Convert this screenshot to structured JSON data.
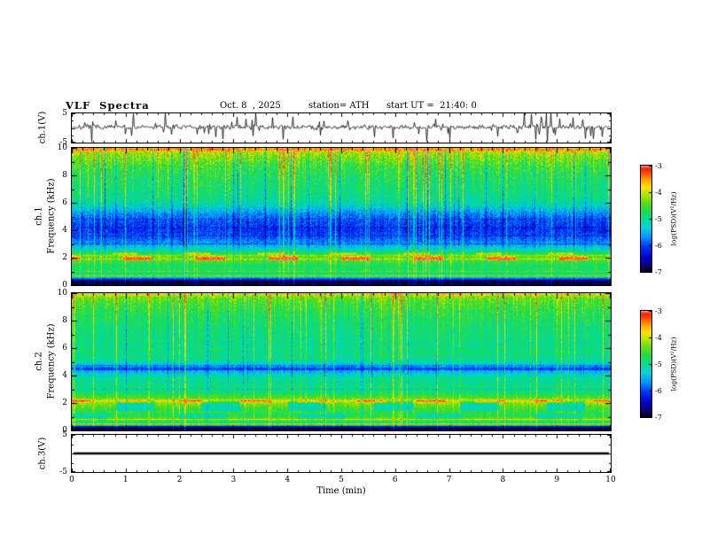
{
  "header": {
    "title": "VLF  Spectra",
    "date": "Oct. 8  , 2025",
    "station": "station= ATH",
    "start_ut": "start UT =  21:40: 0"
  },
  "xaxis": {
    "label": "Time (min)",
    "min": 0,
    "max": 10,
    "ticks": [
      "0",
      "1",
      "2",
      "3",
      "4",
      "5",
      "6",
      "7",
      "8",
      "9",
      "10"
    ]
  },
  "colorbar": {
    "label": "log(PSD)(V²/Hz)",
    "ticks": [
      "-3",
      "-4",
      "-5",
      "-6",
      "-7"
    ],
    "zmin": -7,
    "zmax": -3
  },
  "colormap": {
    "stops": [
      {
        "v": 0.0,
        "color": "#000000"
      },
      {
        "v": 0.06,
        "color": "#10006e"
      },
      {
        "v": 0.14,
        "color": "#0000c8"
      },
      {
        "v": 0.24,
        "color": "#0032ff"
      },
      {
        "v": 0.33,
        "color": "#0096ff"
      },
      {
        "v": 0.42,
        "color": "#00d2dc"
      },
      {
        "v": 0.5,
        "color": "#00dc96"
      },
      {
        "v": 0.58,
        "color": "#1edc46"
      },
      {
        "v": 0.66,
        "color": "#64dc14"
      },
      {
        "v": 0.73,
        "color": "#b4e600"
      },
      {
        "v": 0.8,
        "color": "#ffe100"
      },
      {
        "v": 0.87,
        "color": "#ffa000"
      },
      {
        "v": 0.93,
        "color": "#ff5000"
      },
      {
        "v": 0.975,
        "color": "#ff1e00"
      },
      {
        "v": 1.0,
        "color": "#ff7d8c"
      }
    ]
  },
  "chart_data": [
    {
      "type": "line",
      "name": "ch1-waveform",
      "ylabel": "ch.1(V)",
      "ylim": [
        -5,
        5
      ],
      "yticks": [
        "5",
        "-5"
      ],
      "xlim": [
        0,
        10
      ],
      "baseline": 0.3,
      "noise_sigma": 0.5,
      "spike_prob": 0.12,
      "spike_max": 5,
      "seed": 7,
      "color": "#000000"
    },
    {
      "type": "heatmap",
      "name": "ch1-spectrogram",
      "ylabel_channel": "ch.1",
      "ylabel_text": "Frequency (kHz)",
      "ylim": [
        0,
        10
      ],
      "yticks": [
        "10",
        "8",
        "6",
        "4",
        "2",
        "0"
      ],
      "xlim": [
        0,
        10
      ],
      "zlim": [
        -7,
        -3
      ],
      "seed": 42,
      "noise": 0.5,
      "noise_top": 0.8,
      "profile": [
        [
          0,
          -6.9
        ],
        [
          0.3,
          -6.8
        ],
        [
          0.5,
          -5.8
        ],
        [
          0.7,
          -4.5
        ],
        [
          0.9,
          -5.1
        ],
        [
          1.1,
          -4.7
        ],
        [
          1.4,
          -4.8
        ],
        [
          1.9,
          -4.4
        ],
        [
          2.2,
          -4.5
        ],
        [
          2.6,
          -5.2
        ],
        [
          3.0,
          -5.6
        ],
        [
          3.4,
          -5.9
        ],
        [
          4.0,
          -6.1
        ],
        [
          4.6,
          -6.0
        ],
        [
          5.2,
          -5.7
        ],
        [
          5.8,
          -5.2
        ],
        [
          6.4,
          -4.95
        ],
        [
          7.2,
          -4.85
        ],
        [
          8.0,
          -4.75
        ],
        [
          8.8,
          -4.55
        ],
        [
          9.4,
          -4.25
        ],
        [
          10,
          -3.9
        ]
      ],
      "hlines": [
        {
          "f": 0.65,
          "w": 0.09,
          "amp": 0.6
        },
        {
          "f": 1.0,
          "w": 0.07,
          "amp": 0.5
        },
        {
          "f": 1.9,
          "w": 0.08,
          "amp": 0.35
        },
        {
          "f": 2.15,
          "w": 0.06,
          "amp": 0.4
        },
        {
          "f": 3.0,
          "w": 0.06,
          "amp": -0.4
        },
        {
          "f": 3.6,
          "w": 0.05,
          "amp": -0.3
        },
        {
          "f": 4.2,
          "w": 0.05,
          "amp": -0.3
        },
        {
          "f": 4.8,
          "w": 0.05,
          "amp": -0.25
        },
        {
          "f": 9.9,
          "w": 0.25,
          "amp": 0.55
        }
      ],
      "segments": [
        {
          "f": 1.95,
          "w": 0.16,
          "amp": 1.25,
          "period": 1.35,
          "duty": 0.4,
          "phase": 0.3
        },
        {
          "f": 2.3,
          "w": 0.08,
          "amp": 0.7,
          "period": 1.35,
          "duty": 0.35,
          "phase": 0.45
        }
      ],
      "streaks": {
        "strong_prob": 0.09,
        "strong_amp": 1.1,
        "neg_prob": 0.06,
        "neg_amp": -0.8,
        "base_amp": 0.5,
        "weight0": 0.35,
        "weight1": 0.75
      }
    },
    {
      "type": "heatmap",
      "name": "ch2-spectrogram",
      "ylabel_channel": "ch.2",
      "ylabel_text": "Frequency (kHz)",
      "ylim": [
        0,
        10
      ],
      "yticks": [
        "10",
        "8",
        "6",
        "4",
        "2",
        "0"
      ],
      "xlim": [
        0,
        10
      ],
      "zlim": [
        -7,
        -3
      ],
      "seed": 99,
      "noise": 0.45,
      "noise_top": 0.5,
      "profile": [
        [
          0,
          -6.9
        ],
        [
          0.25,
          -6.8
        ],
        [
          0.45,
          -4.3
        ],
        [
          0.6,
          -4.9
        ],
        [
          0.8,
          -4.3
        ],
        [
          1.0,
          -4.7
        ],
        [
          1.3,
          -4.65
        ],
        [
          1.6,
          -4.55
        ],
        [
          1.9,
          -4.3
        ],
        [
          2.15,
          -4.1
        ],
        [
          2.4,
          -4.5
        ],
        [
          2.8,
          -4.85
        ],
        [
          3.3,
          -4.9
        ],
        [
          3.8,
          -5.0
        ],
        [
          4.3,
          -5.5
        ],
        [
          4.55,
          -5.9
        ],
        [
          4.8,
          -5.3
        ],
        [
          5.2,
          -4.95
        ],
        [
          5.8,
          -4.9
        ],
        [
          6.6,
          -4.9
        ],
        [
          7.5,
          -4.85
        ],
        [
          8.5,
          -4.7
        ],
        [
          9.3,
          -4.5
        ],
        [
          10,
          -4.2
        ]
      ],
      "hlines": [
        {
          "f": 0.45,
          "w": 0.07,
          "amp": 0.5
        },
        {
          "f": 0.8,
          "w": 0.07,
          "amp": 0.45
        },
        {
          "f": 2.15,
          "w": 0.1,
          "amp": 0.4
        },
        {
          "f": 3.0,
          "w": 0.05,
          "amp": -0.45
        },
        {
          "f": 3.5,
          "w": 0.05,
          "amp": -0.35
        },
        {
          "f": 4.45,
          "w": 0.07,
          "amp": -0.6
        },
        {
          "f": 4.75,
          "w": 0.05,
          "amp": -0.4
        },
        {
          "f": 6.3,
          "w": 0.05,
          "amp": -0.25
        },
        {
          "f": 9.9,
          "w": 0.2,
          "amp": 0.4
        }
      ],
      "segments": [
        {
          "f": 1.8,
          "w": 0.4,
          "amp": -0.8,
          "period": 1.6,
          "duty": 0.45,
          "phase": 0.5
        },
        {
          "f": 1.0,
          "w": 0.2,
          "amp": -0.55,
          "period": 2.2,
          "duty": 0.4,
          "phase": 0.1
        },
        {
          "f": 2.15,
          "w": 0.12,
          "amp": 0.6,
          "period": 1.1,
          "duty": 0.5,
          "phase": 0.2
        }
      ],
      "streaks": {
        "strong_prob": 0.07,
        "strong_amp": 1.0,
        "neg_prob": 0.05,
        "neg_amp": -0.7,
        "base_amp": 0.45,
        "weight0": 0.45,
        "weight1": 0.55
      }
    },
    {
      "type": "line",
      "name": "ch3-waveform",
      "ylabel": "ch.3(V)",
      "ylim": [
        -5,
        5
      ],
      "yticks": [
        "5",
        "-5"
      ],
      "xlim": [
        0,
        10
      ],
      "constant": 0,
      "line_width": 2.6,
      "seed": 3,
      "color": "#000000"
    }
  ]
}
